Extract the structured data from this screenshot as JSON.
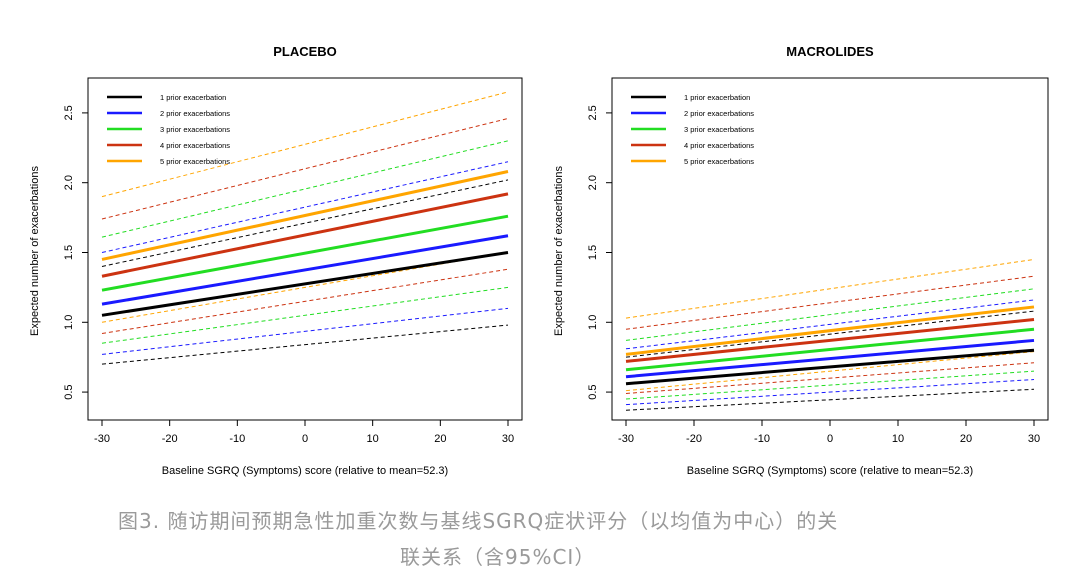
{
  "caption": {
    "line1": "图3. 随访期间预期急性加重次数与基线SGRQ症状评分（以均值为中心）的关",
    "line2": "联关系（含95%CI）"
  },
  "chart_data": [
    {
      "type": "line",
      "title": "PLACEBO",
      "xlabel": "Baseline SGRQ (Symptoms) score (relative to mean=52.3)",
      "ylabel": "Expected number of exacerbations",
      "xlim": [
        -30,
        30
      ],
      "ylim": [
        0.3,
        2.75
      ],
      "xticks": [
        -30,
        -20,
        -10,
        0,
        10,
        20,
        30
      ],
      "yticks": [
        0.5,
        1.0,
        1.5,
        2.0,
        2.5
      ],
      "xtick_labels": [
        "-30",
        "-20",
        "-10",
        "0",
        "10",
        "20",
        "30"
      ],
      "ytick_labels": [
        "0.5",
        "1.0",
        "1.5",
        "2.0",
        "2.5"
      ],
      "grid": false,
      "legend_position": "top-left",
      "x": [
        -30,
        30
      ],
      "series": [
        {
          "name": "1 prior exacerbation",
          "color": "#000000",
          "values": [
            1.05,
            1.5
          ],
          "lower": [
            0.7,
            0.98
          ],
          "upper": [
            1.4,
            2.02
          ]
        },
        {
          "name": "2 prior exacerbations",
          "color": "#1a1aff",
          "values": [
            1.13,
            1.62
          ],
          "lower": [
            0.77,
            1.1
          ],
          "upper": [
            1.5,
            2.15
          ]
        },
        {
          "name": "3 prior exacerbations",
          "color": "#22dd22",
          "values": [
            1.23,
            1.76
          ],
          "lower": [
            0.85,
            1.25
          ],
          "upper": [
            1.61,
            2.3
          ]
        },
        {
          "name": "4 prior exacerbations",
          "color": "#cc3311",
          "values": [
            1.33,
            1.92
          ],
          "lower": [
            0.92,
            1.38
          ],
          "upper": [
            1.74,
            2.46
          ]
        },
        {
          "name": "5 prior exacerbations",
          "color": "#ffa500",
          "values": [
            1.45,
            2.08
          ],
          "lower": [
            1.0,
            1.5
          ],
          "upper": [
            1.9,
            2.65
          ]
        }
      ]
    },
    {
      "type": "line",
      "title": "MACROLIDES",
      "xlabel": "Baseline SGRQ (Symptoms) score (relative to mean=52.3)",
      "ylabel": "Expected number of exacerbations",
      "xlim": [
        -30,
        30
      ],
      "ylim": [
        0.3,
        2.75
      ],
      "xticks": [
        -30,
        -20,
        -10,
        0,
        10,
        20,
        30
      ],
      "yticks": [
        0.5,
        1.0,
        1.5,
        2.0,
        2.5
      ],
      "xtick_labels": [
        "-30",
        "-20",
        "-10",
        "0",
        "10",
        "20",
        "30"
      ],
      "ytick_labels": [
        "0.5",
        "1.0",
        "1.5",
        "2.0",
        "2.5"
      ],
      "grid": false,
      "legend_position": "top-left",
      "x": [
        -30,
        30
      ],
      "series": [
        {
          "name": "1 prior exacerbation",
          "color": "#000000",
          "values": [
            0.56,
            0.8
          ],
          "lower": [
            0.37,
            0.52
          ],
          "upper": [
            0.75,
            1.08
          ]
        },
        {
          "name": "2 prior exacerbations",
          "color": "#1a1aff",
          "values": [
            0.61,
            0.87
          ],
          "lower": [
            0.41,
            0.59
          ],
          "upper": [
            0.81,
            1.16
          ]
        },
        {
          "name": "3 prior exacerbations",
          "color": "#22dd22",
          "values": [
            0.66,
            0.95
          ],
          "lower": [
            0.45,
            0.65
          ],
          "upper": [
            0.87,
            1.24
          ]
        },
        {
          "name": "4 prior exacerbations",
          "color": "#cc3311",
          "values": [
            0.72,
            1.02
          ],
          "lower": [
            0.49,
            0.71
          ],
          "upper": [
            0.95,
            1.33
          ]
        },
        {
          "name": "5 prior exacerbations",
          "color": "#ffa500",
          "values": [
            0.77,
            1.11
          ],
          "lower": [
            0.51,
            0.79
          ],
          "upper": [
            1.03,
            1.45
          ]
        }
      ]
    }
  ]
}
